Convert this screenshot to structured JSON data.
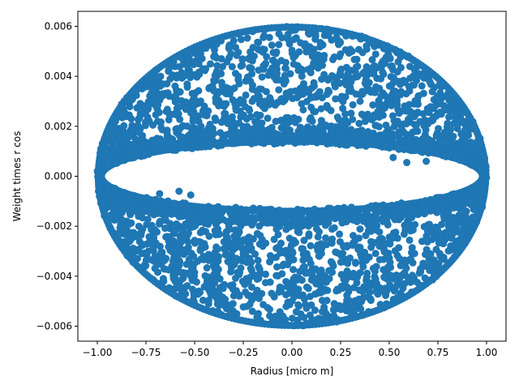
{
  "chart_data": {
    "type": "scatter",
    "title": "",
    "xlabel": "Radius [micro m]",
    "ylabel": "Weight times  r  cos",
    "xlim": [
      -1.1,
      1.1
    ],
    "ylim": [
      -0.0066,
      0.0066
    ],
    "x_ticks": [
      -1.0,
      -0.75,
      -0.5,
      -0.25,
      0.0,
      0.25,
      0.5,
      0.75,
      1.0
    ],
    "x_tick_labels": [
      "−1.00",
      "−0.75",
      "−0.50",
      "−0.25",
      "0.00",
      "0.25",
      "0.50",
      "0.75",
      "1.00"
    ],
    "y_ticks": [
      -0.006,
      -0.004,
      -0.002,
      0.0,
      0.002,
      0.004,
      0.006
    ],
    "y_tick_labels": [
      "−0.006",
      "−0.004",
      "−0.002",
      "0.000",
      "0.002",
      "0.004",
      "0.006"
    ],
    "grid": false,
    "legend": "none",
    "marker_color": "#1f77b4",
    "series": [
      {
        "description_points": "Dense cloud of circular markers filling an ellipse |x|<=1, |y|<=0.006 with a hollow central lens near y=0",
        "outer_envelope": {
          "x_half_width": 1.0,
          "y_half_height": 0.006
        },
        "inner_hollow": {
          "x_half_width": 0.98,
          "y_half_height": 0.0013
        },
        "points": [
          [
            0.59,
            0.00055
          ],
          [
            0.69,
            0.0006
          ],
          [
            0.52,
            0.00075
          ],
          [
            -0.58,
            -0.0006
          ],
          [
            -0.68,
            -0.0007
          ],
          [
            -0.52,
            -0.00075
          ],
          [
            -0.15,
            0.0028
          ],
          [
            -0.05,
            0.0031
          ],
          [
            0.05,
            0.0029
          ],
          [
            0.15,
            0.0027
          ],
          [
            0.25,
            0.0031
          ],
          [
            0.35,
            0.003
          ],
          [
            0.45,
            0.0028
          ],
          [
            -0.25,
            0.003
          ],
          [
            -0.35,
            0.0029
          ],
          [
            -0.45,
            0.0028
          ],
          [
            -0.15,
            -0.0028
          ],
          [
            -0.05,
            -0.003
          ],
          [
            0.05,
            -0.0029
          ],
          [
            0.15,
            -0.0027
          ],
          [
            0.25,
            -0.0031
          ],
          [
            0.35,
            -0.003
          ],
          [
            0.45,
            -0.0028
          ],
          [
            -0.25,
            -0.0031
          ],
          [
            -0.35,
            -0.0029
          ],
          [
            -0.45,
            -0.0027
          ]
        ]
      }
    ]
  }
}
